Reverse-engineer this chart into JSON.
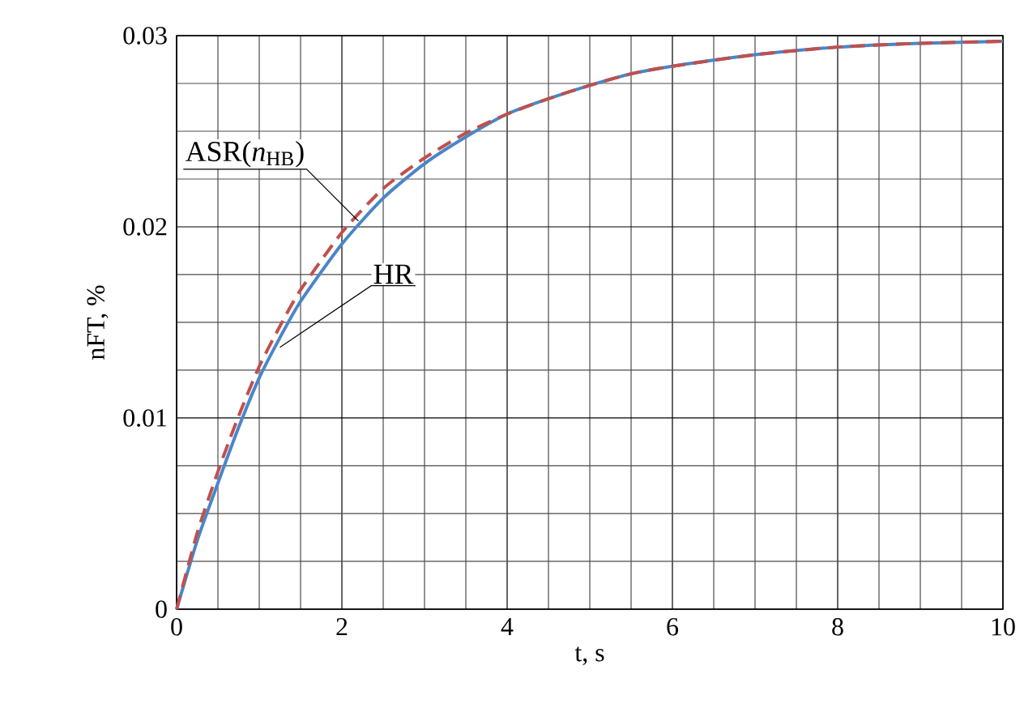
{
  "chart_data": {
    "type": "line",
    "xlabel": "t, s",
    "ylabel": "nFT, %",
    "xlim": [
      0,
      10
    ],
    "ylim": [
      0,
      0.03
    ],
    "xticks": [
      0,
      2,
      4,
      6,
      8,
      10
    ],
    "yticks": [
      0,
      0.01,
      0.02,
      0.03
    ],
    "grid": true,
    "marker": "none",
    "x": [
      0,
      0.25,
      0.5,
      0.75,
      1,
      1.25,
      1.5,
      2,
      2.5,
      3,
      3.5,
      4,
      4.5,
      5,
      5.5,
      6,
      7,
      8,
      9,
      10
    ],
    "series": [
      {
        "color": "#4a86c8",
        "line_style": "solid",
        "values": [
          0,
          0.0036,
          0.0066,
          0.0095,
          0.0121,
          0.0142,
          0.0161,
          0.0191,
          0.0215,
          0.0233,
          0.0247,
          0.0259,
          0.0267,
          0.0274,
          0.028,
          0.0284,
          0.029,
          0.0294,
          0.0296,
          0.0297
        ]
      },
      {
        "color": "#c0504d",
        "line_style": "dashed",
        "values": [
          0,
          0.004,
          0.0072,
          0.0101,
          0.0127,
          0.0148,
          0.0167,
          0.0197,
          0.022,
          0.0236,
          0.0249,
          0.0259,
          0.0267,
          0.0274,
          0.028,
          0.0284,
          0.029,
          0.0294,
          0.0296,
          0.0297
        ]
      }
    ],
    "annotations": [
      {
        "text": "ASR(*n*$_{HB}$)",
        "x": 2.2,
        "y": 0.0203
      },
      {
        "text": "HR",
        "x": 1.25,
        "y": 0.0137
      }
    ]
  }
}
